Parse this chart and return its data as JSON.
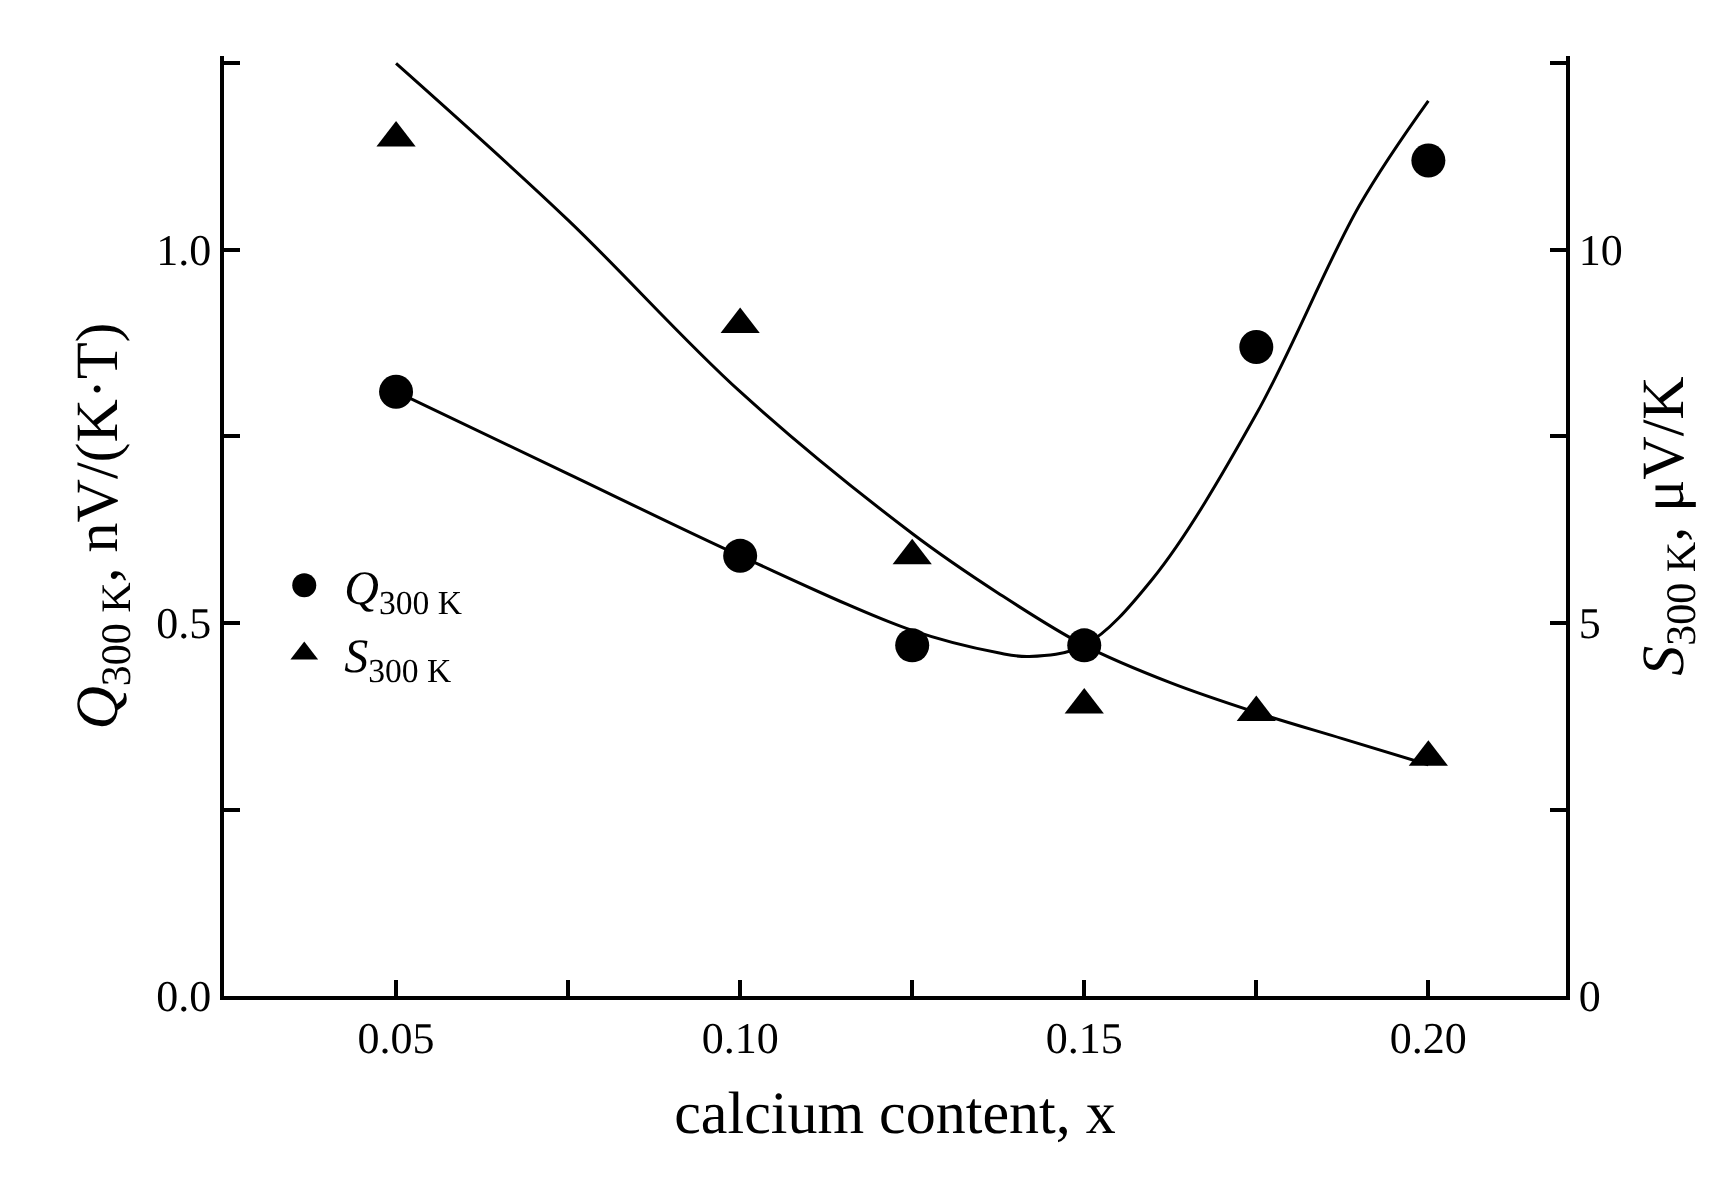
{
  "chart_data": {
    "type": "scatter",
    "xlabel": "calcium content, x",
    "ylabel": "Q$_{300 K}$, nV/(K·T)",
    "y2label": "S$_{300 K}$, μV/K",
    "series": [
      {
        "name": "Q$_{300 K}$",
        "marker": "circle",
        "color": "#000000",
        "x": [
          0.05,
          0.1,
          0.125,
          0.15,
          0.175,
          0.2
        ],
        "values": [
          0.81,
          0.59,
          0.47,
          0.47,
          0.87,
          1.12
        ]
      },
      {
        "name": "S$_{300 K}$",
        "marker": "triangle",
        "color": "#000000",
        "axis": "y2",
        "x": [
          0.05,
          0.1,
          0.125,
          0.15,
          0.175,
          0.2
        ],
        "values": [
          11.5,
          9.0,
          5.9,
          3.9,
          3.8,
          3.2
        ]
      },
      {
        "type": "line",
        "marker": "none",
        "color": "#000000",
        "x": [
          0.05,
          0.075,
          0.1,
          0.125,
          0.1375,
          0.142,
          0.15,
          0.16,
          0.175,
          0.19,
          0.2
        ],
        "values": [
          0.81,
          0.7,
          0.59,
          0.49,
          0.46,
          0.455,
          0.47,
          0.56,
          0.78,
          1.06,
          1.2
        ]
      },
      {
        "type": "line",
        "marker": "none",
        "color": "#000000",
        "axis": "y2",
        "x": [
          0.05,
          0.075,
          0.1,
          0.125,
          0.1375,
          0.15,
          0.1625,
          0.175,
          0.1875,
          0.2
        ],
        "values": [
          12.5,
          10.4,
          8.1,
          6.2,
          5.4,
          4.7,
          4.2,
          3.8,
          3.45,
          3.1
        ]
      }
    ],
    "xlim": [
      0.025,
      0.22
    ],
    "xticks": [
      {
        "value": 0.05,
        "label": "0.05"
      },
      {
        "value": 0.075,
        "label": null
      },
      {
        "value": 0.1,
        "label": "0.10"
      },
      {
        "value": 0.125,
        "label": null
      },
      {
        "value": 0.15,
        "label": "0.15"
      },
      {
        "value": 0.175,
        "label": null
      },
      {
        "value": 0.2,
        "label": "0.20"
      }
    ],
    "ylim": [
      0,
      1.26
    ],
    "yticks": [
      {
        "value": 0,
        "label": "0.0"
      },
      {
        "value": 0.25,
        "label": null
      },
      {
        "value": 0.5,
        "label": "0.5"
      },
      {
        "value": 0.75,
        "label": null
      },
      {
        "value": 1.0,
        "label": "1.0"
      },
      {
        "value": 1.25,
        "label": null
      }
    ],
    "y2lim": [
      0,
      12.6
    ],
    "y2ticks": [
      0,
      {
        "value": 2.5,
        "label": null
      },
      5,
      {
        "value": 7.5,
        "label": null
      },
      10,
      {
        "value": 12.5,
        "label": null
      }
    ],
    "legend": "left"
  }
}
